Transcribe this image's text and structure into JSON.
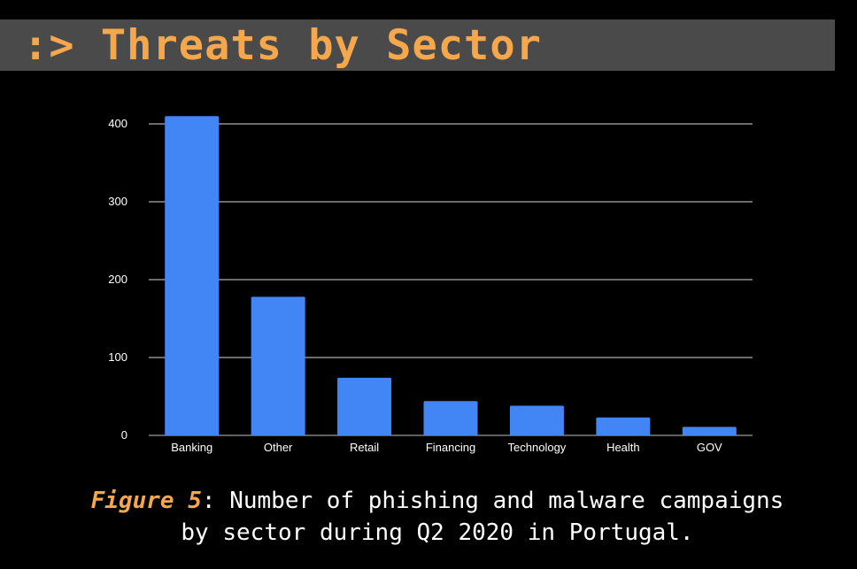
{
  "title": {
    "prefix": ":>",
    "text": "Threats by Sector"
  },
  "caption": {
    "figure_label": "Figure 5",
    "separator": ":",
    "line1": " Number of phishing and malware campaigns",
    "line2": "by sector during Q2 2020 in Portugal."
  },
  "colors": {
    "accent": "#f4a74d",
    "title_bar": "#4a4a4a",
    "bar": "#4285f4",
    "grid": "#d9d9d9",
    "axis_text": "#ffffff",
    "background": "#000000"
  },
  "chart_data": {
    "type": "bar",
    "categories": [
      "Banking",
      "Other",
      "Retail",
      "Financing",
      "Technology",
      "Health",
      "GOV"
    ],
    "values": [
      410,
      178,
      74,
      44,
      38,
      23,
      11
    ],
    "yticks": [
      0,
      100,
      200,
      300,
      400
    ],
    "ylim": [
      0,
      400
    ],
    "grid": true,
    "legend": "none",
    "title": "",
    "xlabel": "",
    "ylabel": ""
  }
}
